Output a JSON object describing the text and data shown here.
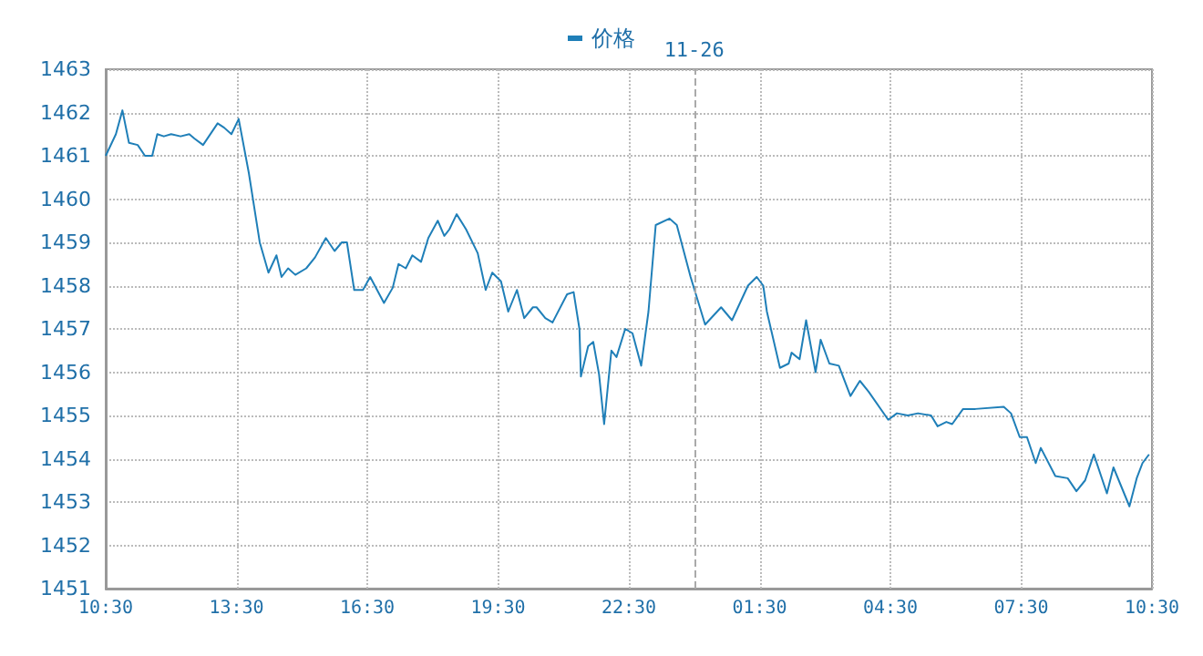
{
  "chart_data": {
    "type": "line",
    "legend": "top",
    "grid": true,
    "marker": "none",
    "line_style": "solid",
    "xlim": [
      "--11-25T10:30",
      "--11-26T10:30"
    ],
    "xticks": [
      {
        "value": "--11-25T10:30",
        "label": "10:30"
      },
      {
        "value": "--11-25T13:30",
        "label": "13:30"
      },
      {
        "value": "--11-25T16:30",
        "label": "16:30"
      },
      {
        "value": "--11-25T19:30",
        "label": "19:30"
      },
      {
        "value": "--11-25T22:30",
        "label": "22:30"
      },
      {
        "value": "--11-26T01:30",
        "label": "01:30"
      },
      {
        "value": "--11-26T04:30",
        "label": "04:30"
      },
      {
        "value": "--11-26T07:30",
        "label": "07:30"
      },
      {
        "value": "--11-26T10:30",
        "label": "10:30"
      }
    ],
    "ylim": [
      1451,
      1463
    ],
    "yticks": [
      1451,
      1452,
      1453,
      1454,
      1455,
      1456,
      1457,
      1458,
      1459,
      1460,
      1461,
      1462,
      1463
    ],
    "ref_lines": [
      {
        "axis": "x",
        "value": "--11-26T00:00",
        "label": "11-26",
        "color": "#aaaaaa",
        "line_style": "dashed"
      }
    ],
    "series": [
      {
        "name": "价格",
        "color": "#1f7fb8",
        "x": [
          "--11-25T10:30",
          "--11-25T10:44",
          "--11-25T10:53",
          "--11-25T11:02",
          "--11-25T11:14",
          "--11-25T11:24",
          "--11-25T11:34",
          "--11-25T11:41",
          "--11-25T11:50",
          "--11-25T12:00",
          "--11-25T12:13",
          "--11-25T12:25",
          "--11-25T12:32",
          "--11-25T12:44",
          "--11-25T13:04",
          "--11-25T13:13",
          "--11-25T13:23",
          "--11-25T13:33",
          "--11-25T13:47",
          "--11-25T14:02",
          "--11-25T14:14",
          "--11-25T14:25",
          "--11-25T14:32",
          "--11-25T14:41",
          "--11-25T14:51",
          "--11-25T15:06",
          "--11-25T15:18",
          "--11-25T15:33",
          "--11-25T15:45",
          "--11-25T15:55",
          "--11-25T16:02",
          "--11-25T16:12",
          "--11-25T16:24",
          "--11-25T16:34",
          "--11-25T16:53",
          "--11-25T17:05",
          "--11-25T17:13",
          "--11-25T17:23",
          "--11-25T17:32",
          "--11-25T17:44",
          "--11-25T17:54",
          "--11-25T18:07",
          "--11-25T18:16",
          "--11-25T18:23",
          "--11-25T18:33",
          "--11-25T18:46",
          "--11-25T19:02",
          "--11-25T19:13",
          "--11-25T19:22",
          "--11-25T19:34",
          "--11-25T19:44",
          "--11-25T19:56",
          "--11-25T20:06",
          "--11-25T20:18",
          "--11-25T20:23",
          "--11-25T20:35",
          "--11-25T20:45",
          "--11-25T21:05",
          "--11-25T21:14",
          "--11-25T21:22",
          "--11-25T21:24",
          "--11-25T21:34",
          "--11-25T21:41",
          "--11-25T21:49",
          "--11-25T21:56",
          "--11-25T22:06",
          "--11-25T22:13",
          "--11-25T22:25",
          "--11-25T22:35",
          "--11-25T22:47",
          "--11-25T22:57",
          "--11-25T23:07",
          "--11-25T23:26",
          "--11-25T23:36",
          "--11-25T23:55",
          "--11-26T00:15",
          "--11-26T00:37",
          "--11-26T00:52",
          "--11-26T01:14",
          "--11-26T01:26",
          "--11-26T01:35",
          "--11-26T01:40",
          "--11-26T01:58",
          "--11-26T02:10",
          "--11-26T02:14",
          "--11-26T02:25",
          "--11-26T02:34",
          "--11-26T02:47",
          "--11-26T02:54",
          "--11-26T03:06",
          "--11-26T03:19",
          "--11-26T03:35",
          "--11-26T03:48",
          "--11-26T04:00",
          "--11-26T04:27",
          "--11-26T04:39",
          "--11-26T04:54",
          "--11-26T05:08",
          "--11-26T05:26",
          "--11-26T05:35",
          "--11-26T05:47",
          "--11-26T05:55",
          "--11-26T06:10",
          "--11-26T06:27",
          "--11-26T07:06",
          "--11-26T07:16",
          "--11-26T07:28",
          "--11-26T07:38",
          "--11-26T07:50",
          "--11-26T07:57",
          "--11-26T08:17",
          "--11-26T08:34",
          "--11-26T08:46",
          "--11-26T08:58",
          "--11-26T09:10",
          "--11-26T09:28",
          "--11-26T09:37",
          "--11-26T09:59",
          "--11-26T10:09",
          "--11-26T10:17",
          "--11-26T10:26"
        ],
        "values": [
          1461.0,
          1461.5,
          1462.05,
          1461.3,
          1461.25,
          1461.0,
          1461.0,
          1461.5,
          1461.45,
          1461.5,
          1461.45,
          1461.5,
          1461.4,
          1461.25,
          1461.75,
          1461.65,
          1461.5,
          1461.85,
          1460.6,
          1459.0,
          1458.3,
          1458.7,
          1458.2,
          1458.4,
          1458.25,
          1458.4,
          1458.65,
          1459.1,
          1458.8,
          1459.0,
          1459.0,
          1457.9,
          1457.9,
          1458.2,
          1457.6,
          1457.95,
          1458.5,
          1458.4,
          1458.7,
          1458.55,
          1459.1,
          1459.5,
          1459.15,
          1459.3,
          1459.65,
          1459.3,
          1458.75,
          1457.9,
          1458.3,
          1458.1,
          1457.4,
          1457.9,
          1457.25,
          1457.5,
          1457.5,
          1457.25,
          1457.15,
          1457.8,
          1457.85,
          1457.0,
          1455.9,
          1456.6,
          1456.7,
          1455.95,
          1454.8,
          1456.5,
          1456.35,
          1457.0,
          1456.9,
          1456.15,
          1457.4,
          1459.4,
          1459.55,
          1459.4,
          1458.2,
          1457.1,
          1457.5,
          1457.2,
          1458.0,
          1458.2,
          1458.0,
          1457.4,
          1456.1,
          1456.2,
          1456.45,
          1456.3,
          1457.2,
          1456.0,
          1456.75,
          1456.2,
          1456.15,
          1455.45,
          1455.8,
          1455.55,
          1454.9,
          1455.05,
          1455.0,
          1455.05,
          1455.0,
          1454.75,
          1454.85,
          1454.8,
          1455.15,
          1455.15,
          1455.2,
          1455.05,
          1454.5,
          1454.5,
          1453.9,
          1454.25,
          1453.6,
          1453.55,
          1453.25,
          1453.5,
          1454.1,
          1453.2,
          1453.8,
          1452.9,
          1453.55,
          1453.9,
          1454.1
        ]
      }
    ]
  }
}
